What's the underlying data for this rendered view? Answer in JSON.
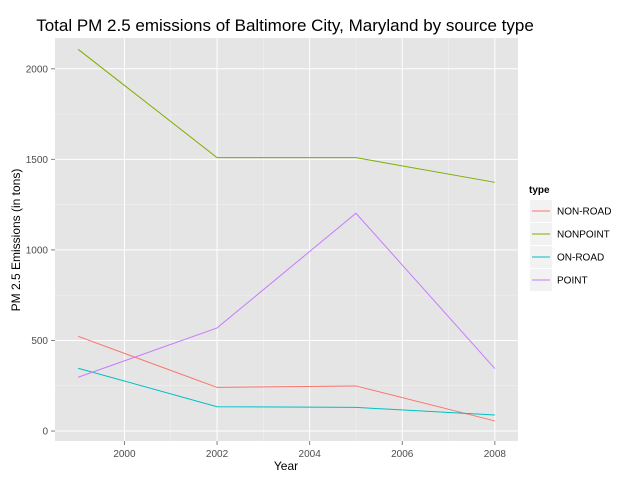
{
  "chart_data": {
    "type": "line",
    "title": "Total PM 2.5 emissions of Baltimore City, Maryland by source type",
    "xlabel": "Year",
    "ylabel": "PM 2.5 Emissions (in tons)",
    "x": [
      1999,
      2002,
      2005,
      2008
    ],
    "xlim": [
      1998.5,
      2008.5
    ],
    "ylim": [
      -55,
      2170
    ],
    "xticks": [
      2000,
      2002,
      2004,
      2006,
      2008
    ],
    "yticks": [
      0,
      500,
      1000,
      1500,
      2000
    ],
    "grid": true,
    "legend": {
      "title": "type",
      "position": "right"
    },
    "series": [
      {
        "name": "NON-ROAD",
        "color": "#F8766D",
        "values": [
          522.94,
          240.85,
          248.93,
          55.82
        ]
      },
      {
        "name": "NONPOINT",
        "color": "#7CAE00",
        "values": [
          2107.63,
          1509.5,
          1509.5,
          1373.21
        ]
      },
      {
        "name": "ON-ROAD",
        "color": "#00BFC4",
        "values": [
          346.82,
          134.31,
          130.43,
          88.28
        ]
      },
      {
        "name": "POINT",
        "color": "#C77CFF",
        "values": [
          296.8,
          569.26,
          1202.49,
          344.98
        ]
      }
    ]
  }
}
